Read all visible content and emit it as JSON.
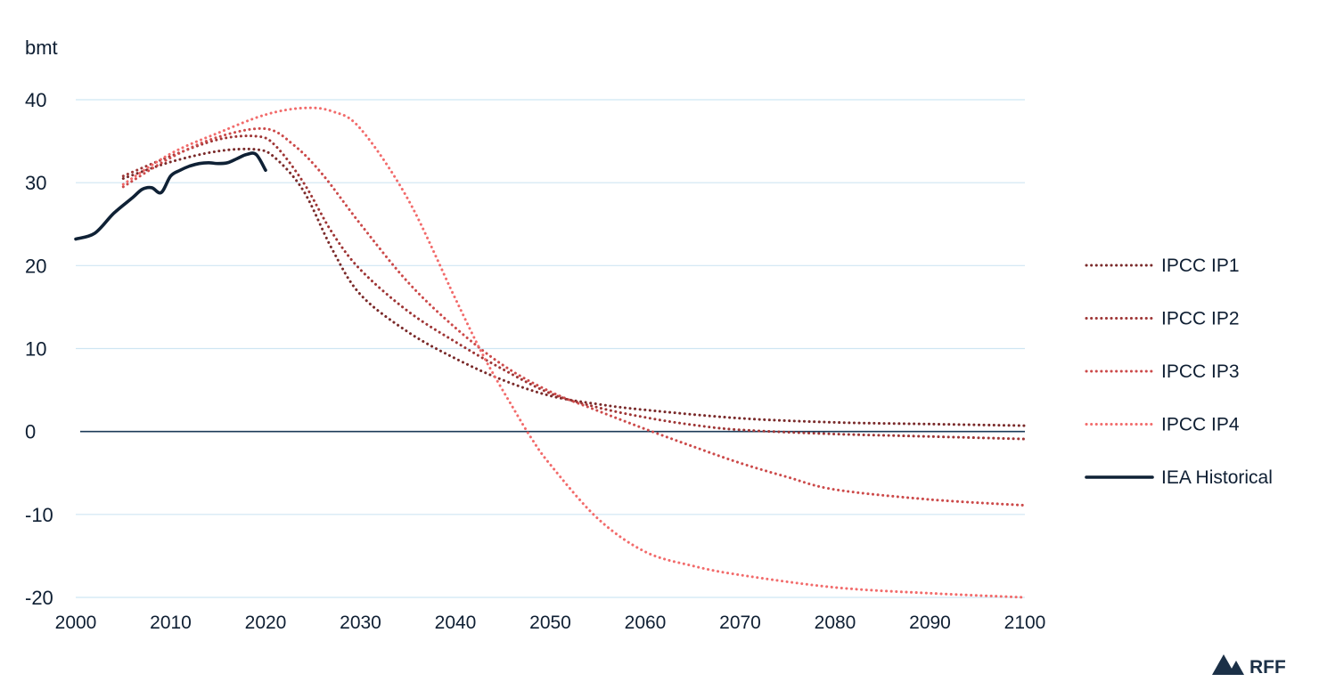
{
  "chart_data": {
    "type": "line",
    "ylabel": "bmt",
    "xlim": [
      2000,
      2100
    ],
    "ylim": [
      -20,
      40
    ],
    "x_ticks": [
      "2000",
      "2010",
      "2020",
      "2030",
      "2040",
      "2050",
      "2060",
      "2070",
      "2080",
      "2090",
      "2100"
    ],
    "y_ticks": [
      "40",
      "30",
      "20",
      "10",
      "0",
      "-10",
      "-20"
    ],
    "grid": true,
    "legend_position": "right",
    "zero_line_color": "#1b3a57",
    "grid_color": "#cfe6f3",
    "series": [
      {
        "name": "IPCC IP1",
        "style": "dotted",
        "color": "#7a2a2a",
        "x": [
          2005,
          2010,
          2015,
          2019,
          2021,
          2024,
          2027,
          2030,
          2035,
          2040,
          2045,
          2050,
          2055,
          2060,
          2070,
          2080,
          2090,
          2100
        ],
        "y": [
          30.5,
          32.5,
          33.8,
          34.0,
          33.0,
          29.0,
          22.0,
          16.5,
          12.0,
          8.8,
          6.2,
          4.3,
          3.3,
          2.6,
          1.6,
          1.1,
          0.9,
          0.7
        ]
      },
      {
        "name": "IPCC IP2",
        "style": "dotted",
        "color": "#9e3535",
        "x": [
          2005,
          2010,
          2015,
          2019,
          2021,
          2024,
          2027,
          2030,
          2035,
          2040,
          2045,
          2050,
          2055,
          2060,
          2065,
          2070,
          2080,
          2090,
          2100
        ],
        "y": [
          30.8,
          33.2,
          35.2,
          35.6,
          34.5,
          30.0,
          24.0,
          19.5,
          14.5,
          10.8,
          7.5,
          4.6,
          2.9,
          1.7,
          0.8,
          0.2,
          -0.3,
          -0.6,
          -0.9
        ]
      },
      {
        "name": "IPCC IP3",
        "style": "dotted",
        "color": "#cc4a4a",
        "x": [
          2005,
          2010,
          2015,
          2020,
          2023,
          2026,
          2030,
          2035,
          2040,
          2045,
          2050,
          2055,
          2060,
          2065,
          2070,
          2075,
          2080,
          2090,
          2100
        ],
        "y": [
          29.5,
          33.0,
          35.5,
          36.5,
          34.5,
          31.0,
          25.0,
          18.0,
          12.5,
          8.0,
          4.8,
          2.5,
          0.3,
          -1.8,
          -3.8,
          -5.5,
          -7.0,
          -8.2,
          -8.9
        ]
      },
      {
        "name": "IPCC IP4",
        "style": "dotted",
        "color": "#f26b6b",
        "x": [
          2005,
          2010,
          2015,
          2020,
          2024,
          2027,
          2030,
          2035,
          2040,
          2043,
          2046,
          2048,
          2050,
          2055,
          2060,
          2065,
          2070,
          2080,
          2090,
          2100
        ],
        "y": [
          29.8,
          33.5,
          36.0,
          38.2,
          39.0,
          38.6,
          36.5,
          28.0,
          16.0,
          9.0,
          3.0,
          -0.8,
          -4.0,
          -10.5,
          -14.5,
          -16.2,
          -17.3,
          -18.8,
          -19.5,
          -20.0
        ]
      },
      {
        "name": "IEA Historical",
        "style": "solid",
        "color": "#0f2135",
        "x": [
          2000,
          2002,
          2004,
          2006,
          2007,
          2008,
          2009,
          2010,
          2011,
          2012,
          2013,
          2014,
          2015,
          2016,
          2017,
          2018,
          2019,
          2020
        ],
        "y": [
          23.2,
          23.9,
          26.3,
          28.2,
          29.2,
          29.4,
          28.8,
          30.8,
          31.5,
          32.0,
          32.3,
          32.4,
          32.3,
          32.4,
          32.9,
          33.4,
          33.4,
          31.5
        ]
      }
    ]
  },
  "brand": {
    "logo_text": "RFF",
    "color": "#1b3047"
  }
}
